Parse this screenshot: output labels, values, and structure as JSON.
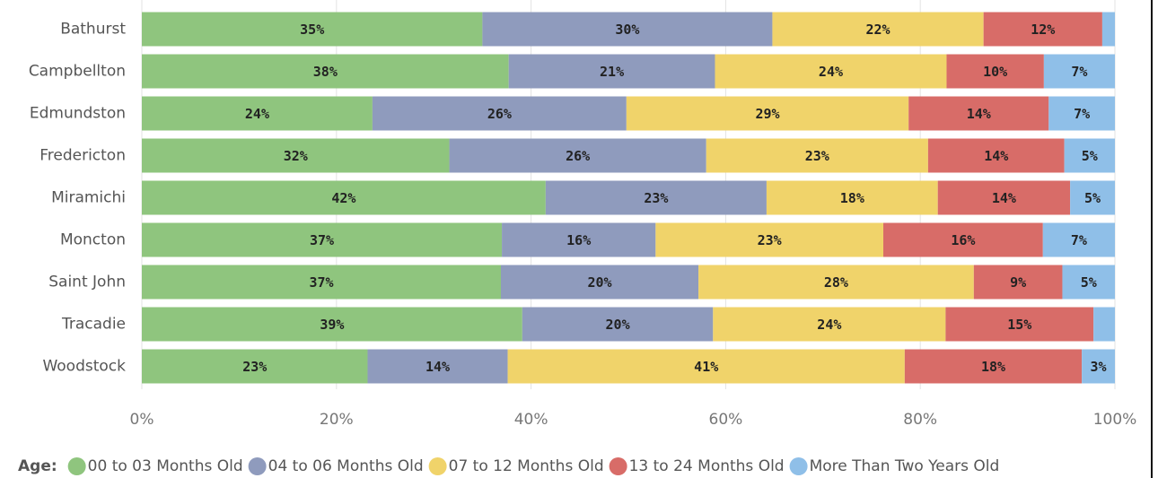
{
  "chart_data": {
    "type": "stacked-bar-horizontal",
    "categories": [
      "Bathurst",
      "Campbellton",
      "Edmundston",
      "Fredericton",
      "Miramichi",
      "Moncton",
      "Saint John",
      "Tracadie",
      "Woodstock"
    ],
    "series": [
      {
        "name": "00 to 03 Months Old",
        "color": "#8fc57e",
        "values": [
          35.0,
          37.7,
          23.7,
          31.6,
          41.5,
          37.0,
          36.9,
          39.1,
          23.2
        ],
        "value_labels": [
          "35%",
          "38%",
          "24%",
          "32%",
          "42%",
          "37%",
          "37%",
          "39%",
          "23%"
        ]
      },
      {
        "name": "04 to 06 Months Old",
        "color": "#8f9bbd",
        "values": [
          29.8,
          21.2,
          26.1,
          26.4,
          22.7,
          15.8,
          20.3,
          19.6,
          14.4
        ],
        "value_labels": [
          "30%",
          "21%",
          "26%",
          "26%",
          "23%",
          "16%",
          "20%",
          "20%",
          "14%"
        ]
      },
      {
        "name": "07 to 12 Months Old",
        "color": "#f0d36a",
        "values": [
          21.7,
          23.8,
          29.0,
          22.8,
          17.6,
          23.4,
          28.3,
          23.9,
          40.8
        ],
        "value_labels": [
          "22%",
          "24%",
          "29%",
          "23%",
          "18%",
          "23%",
          "28%",
          "24%",
          "41%"
        ]
      },
      {
        "name": "13 to 24 Months Old",
        "color": "#d86c68",
        "values": [
          12.2,
          10.0,
          14.4,
          14.0,
          13.6,
          16.4,
          9.1,
          15.2,
          18.2
        ],
        "value_labels": [
          "12%",
          "10%",
          "14%",
          "14%",
          "14%",
          "16%",
          "9%",
          "15%",
          "18%"
        ]
      },
      {
        "name": "More Than Two Years Old",
        "color": "#8fbfe8",
        "values": [
          1.3,
          7.3,
          6.8,
          5.2,
          4.6,
          7.4,
          5.4,
          2.2,
          3.4
        ],
        "value_labels": [
          null,
          "7%",
          "7%",
          "5%",
          "5%",
          "7%",
          "5%",
          null,
          "3%"
        ]
      }
    ],
    "xlim": [
      0,
      100
    ],
    "xticks": [
      {
        "value": 0,
        "label": "0%"
      },
      {
        "value": 20,
        "label": "20%"
      },
      {
        "value": 40,
        "label": "40%"
      },
      {
        "value": 60,
        "label": "60%"
      },
      {
        "value": 80,
        "label": "80%"
      },
      {
        "value": 100,
        "label": "100%"
      }
    ],
    "grid": true,
    "legend_title": "Age:",
    "legend": "bottom-left"
  }
}
